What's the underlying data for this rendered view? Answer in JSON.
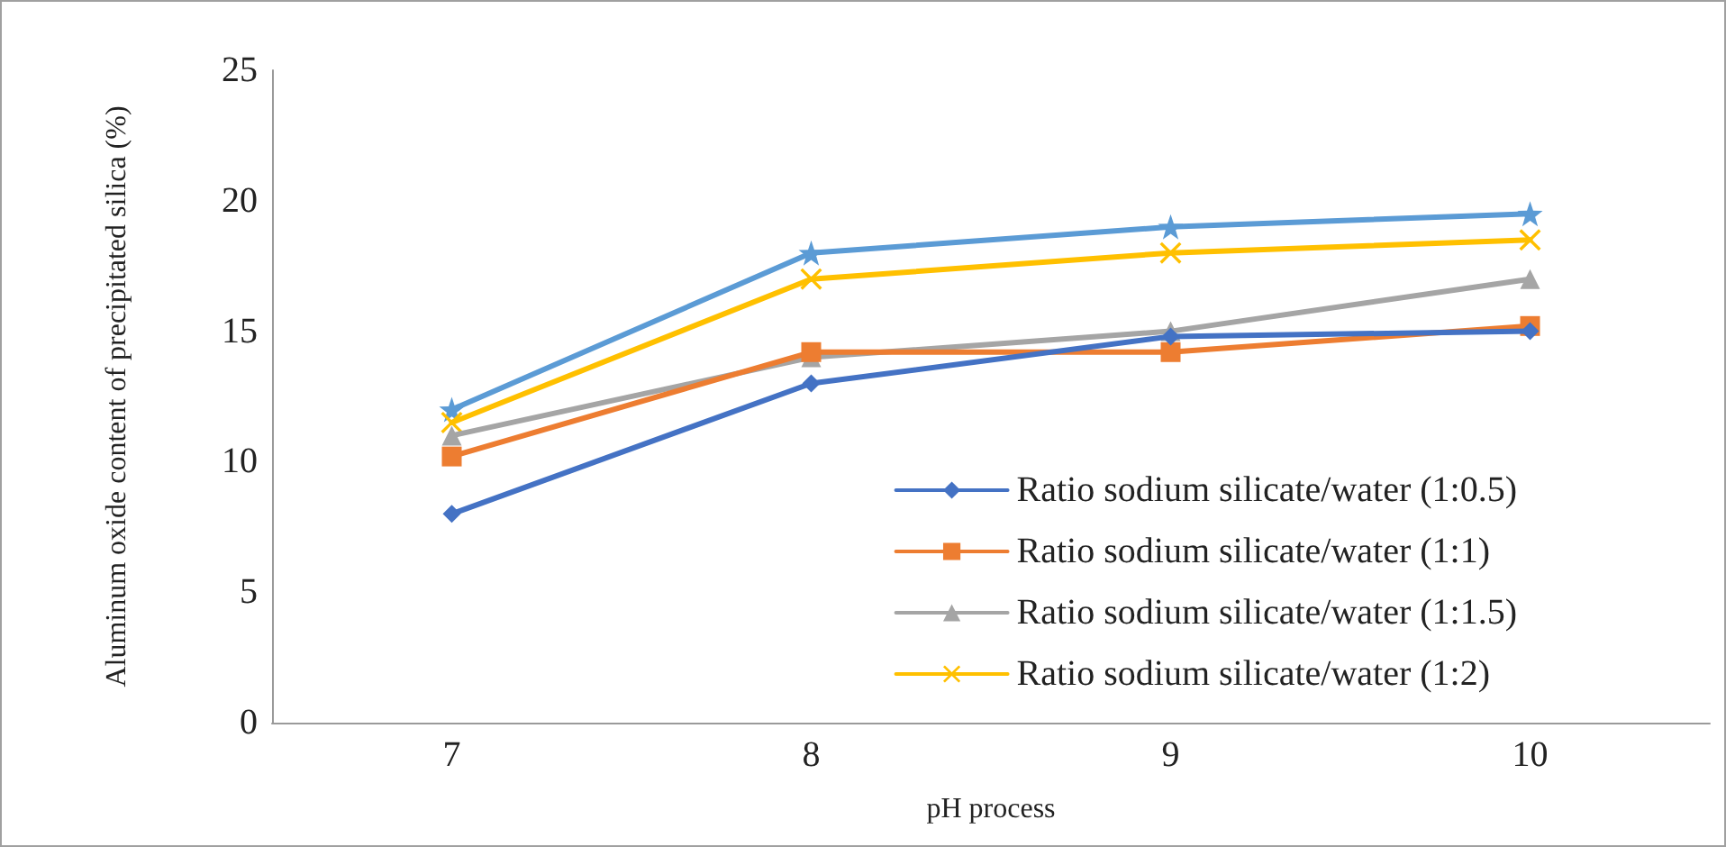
{
  "chart_data": {
    "type": "line",
    "xlabel": "pH process",
    "ylabel": "Aluminum oxide content of precipitated silica (%)",
    "categories": [
      "7",
      "8",
      "9",
      "10"
    ],
    "ylim": [
      0,
      25
    ],
    "yticks": [
      0,
      5,
      10,
      15,
      20,
      25
    ],
    "grid": false,
    "legend": "bottom right",
    "line_style": "solid",
    "series": [
      {
        "name": "Ratio sodium silicate/water (1:0.5)",
        "color": "#4472c4",
        "marker": "diamond",
        "values": [
          8,
          13,
          14.8,
          15
        ]
      },
      {
        "name": "Ratio sodium silicate/water (1:1)",
        "color": "#ed7d31",
        "marker": "square",
        "values": [
          10.2,
          14.2,
          14.2,
          15.2
        ]
      },
      {
        "name": "Ratio sodium silicate/water (1:1.5)",
        "color": "#a5a5a5",
        "marker": "triangle",
        "values": [
          11,
          14,
          15,
          17
        ]
      },
      {
        "name": "Ratio sodium silicate/water (1:2)",
        "color": "#ffc000",
        "marker": "cross",
        "values": [
          11.5,
          17,
          18,
          18.5
        ]
      },
      {
        "color": "#5b9bd5",
        "marker": "star",
        "values": [
          12,
          18,
          19,
          19.5
        ]
      }
    ]
  }
}
